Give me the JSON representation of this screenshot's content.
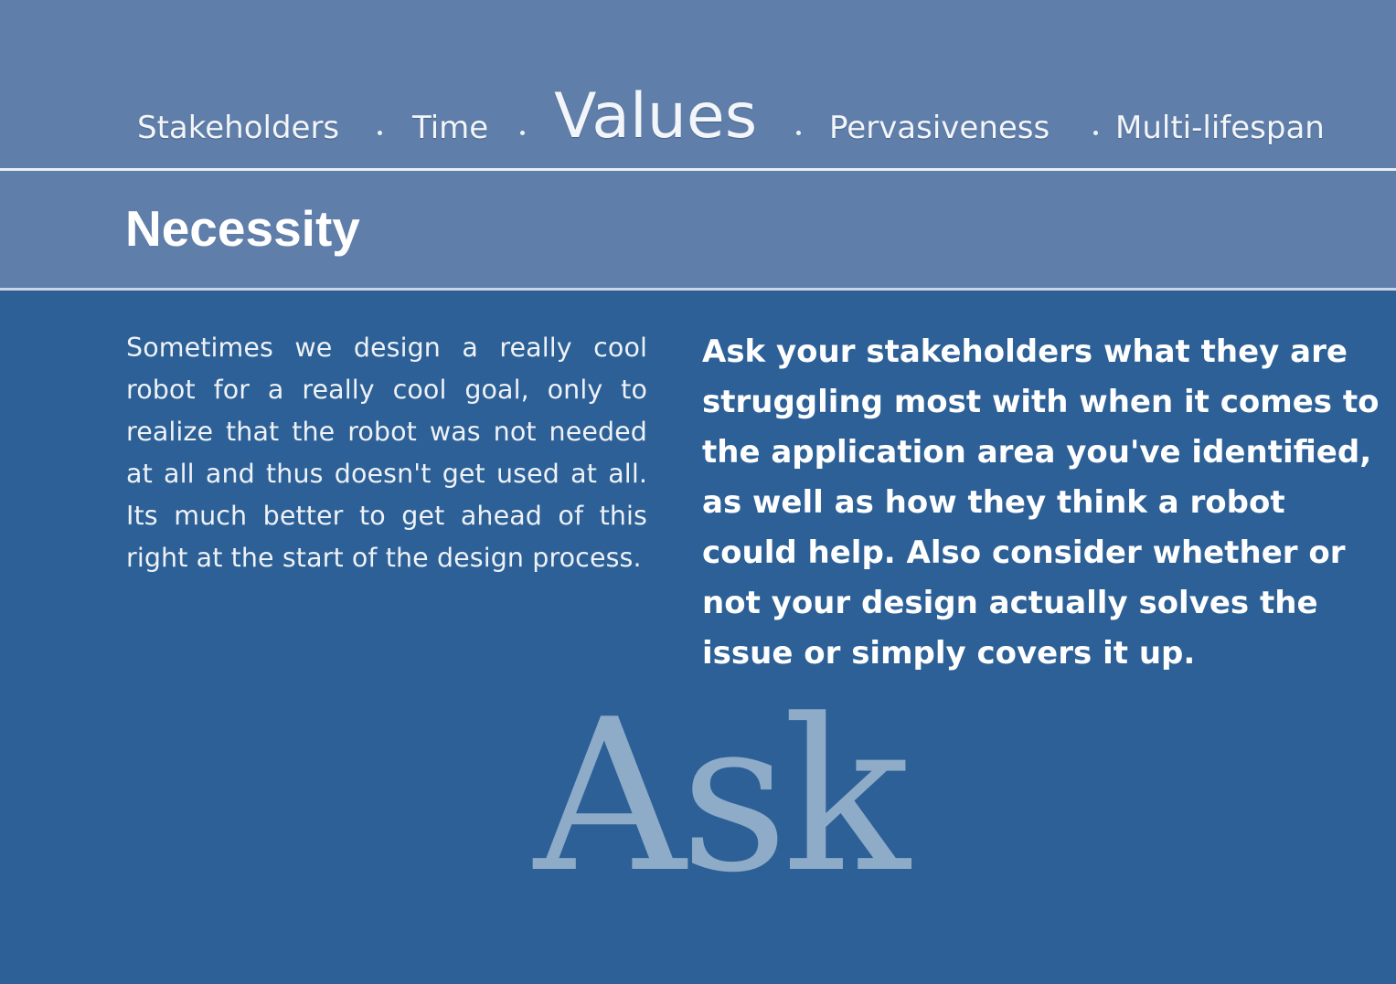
{
  "nav": {
    "items": [
      {
        "label": "Stakeholders"
      },
      {
        "label": "Time"
      },
      {
        "label": "Values"
      },
      {
        "label": "Pervasiveness"
      },
      {
        "label": "Multi-lifespan"
      }
    ],
    "active": "Values"
  },
  "section": {
    "title": "Necessity"
  },
  "content": {
    "description": "Sometimes we design a really cool robot for a really cool goal, only to realize that the robot was not needed at all and thus doesn't get used at all. Its much better to get ahead of this right at the start of the design process.",
    "prompt": "Ask your stakeholders what they are struggling most with when it comes to the application area you've identified, as well as how they think a robot could help. Also consider whether or not your design actually solves the issue or simply covers it up."
  },
  "watermark": {
    "text": "Ask"
  },
  "colors": {
    "background": "#2c6096",
    "header_band": "#5f7ea9",
    "watermark": "#8eabc8",
    "text": "#ffffff"
  }
}
